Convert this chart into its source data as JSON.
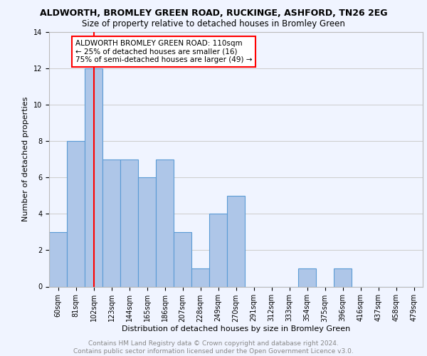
{
  "title": "ALDWORTH, BROMLEY GREEN ROAD, RUCKINGE, ASHFORD, TN26 2EG",
  "subtitle": "Size of property relative to detached houses in Bromley Green",
  "xlabel": "Distribution of detached houses by size in Bromley Green",
  "ylabel": "Number of detached properties",
  "bin_labels": [
    "60sqm",
    "81sqm",
    "102sqm",
    "123sqm",
    "144sqm",
    "165sqm",
    "186sqm",
    "207sqm",
    "228sqm",
    "249sqm",
    "270sqm",
    "291sqm",
    "312sqm",
    "333sqm",
    "354sqm",
    "375sqm",
    "396sqm",
    "416sqm",
    "437sqm",
    "458sqm",
    "479sqm"
  ],
  "bar_heights": [
    3,
    8,
    12,
    7,
    7,
    6,
    7,
    3,
    1,
    4,
    5,
    0,
    0,
    0,
    1,
    0,
    1,
    0,
    0,
    0,
    0
  ],
  "bar_color": "#aec6e8",
  "bar_edge_color": "#5b9bd5",
  "vline_x_index": 2,
  "vline_color": "red",
  "annotation_box_text": "ALDWORTH BROMLEY GREEN ROAD: 110sqm\n← 25% of detached houses are smaller (16)\n75% of semi-detached houses are larger (49) →",
  "annotation_box_color": "white",
  "annotation_box_edge_color": "red",
  "ylim": [
    0,
    14
  ],
  "yticks": [
    0,
    2,
    4,
    6,
    8,
    10,
    12,
    14
  ],
  "grid_color": "#cccccc",
  "footer_text": "Contains HM Land Registry data © Crown copyright and database right 2024.\nContains public sector information licensed under the Open Government Licence v3.0.",
  "title_fontsize": 9,
  "subtitle_fontsize": 8.5,
  "xlabel_fontsize": 8,
  "ylabel_fontsize": 8,
  "tick_fontsize": 7,
  "annotation_fontsize": 7.5,
  "footer_fontsize": 6.5,
  "bg_color": "#f0f4ff"
}
